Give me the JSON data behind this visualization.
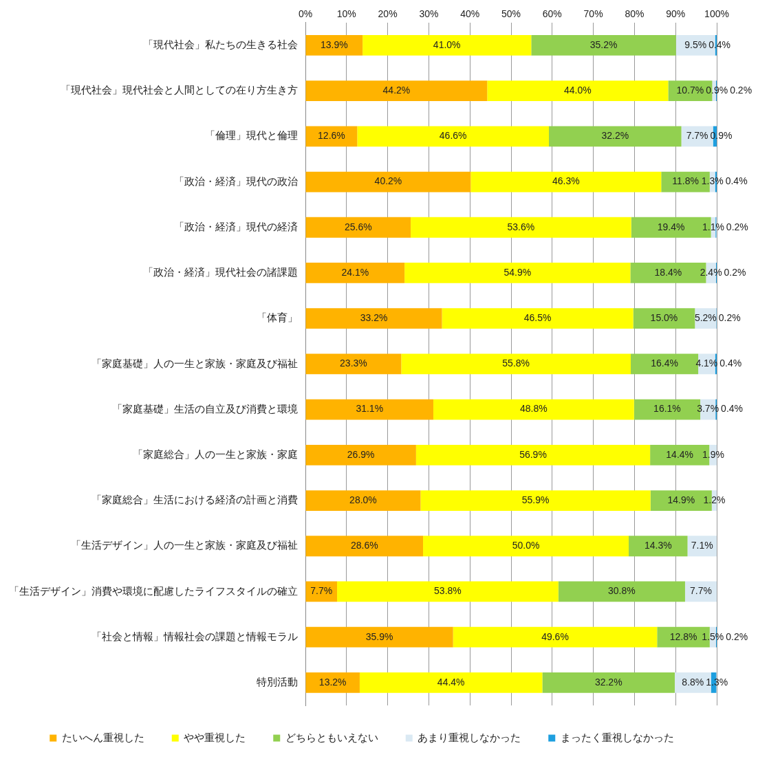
{
  "chart_data": {
    "type": "bar",
    "orientation": "horizontal",
    "stacked": true,
    "categories": [
      "「現代社会」私たちの生きる社会",
      "「現代社会」現代社会と人間としての在り方生き方",
      "「倫理」現代と倫理",
      "「政治・経済」現代の政治",
      "「政治・経済」現代の経済",
      "「政治・経済」現代社会の諸課題",
      "「体育」",
      "「家庭基礎」人の一生と家族・家庭及び福祉",
      "「家庭基礎」生活の自立及び消費と環境",
      "「家庭総合」人の一生と家族・家庭",
      "「家庭総合」生活における経済の計画と消費",
      "「生活デザイン」人の一生と家族・家庭及び福祉",
      "「生活デザイン」消費や環境に配慮したライフスタイルの確立",
      "「社会と情報」情報社会の課題と情報モラル",
      "特別活動"
    ],
    "series": [
      {
        "name": "たいへん重視した",
        "color": "#ffb300",
        "values": [
          13.9,
          44.2,
          12.6,
          40.2,
          25.6,
          24.1,
          33.2,
          23.3,
          31.1,
          26.9,
          28.0,
          28.6,
          7.7,
          35.9,
          13.2
        ],
        "value_labels": [
          "13.9%",
          "44.2%",
          "12.6%",
          "40.2%",
          "25.6%",
          "24.1%",
          "33.2%",
          "23.3%",
          "31.1%",
          "26.9%",
          "28.0%",
          "28.6%",
          "7.7%",
          "35.9%",
          "13.2%"
        ]
      },
      {
        "name": "やや重視した",
        "color": "#ffff00",
        "values": [
          41.0,
          44.0,
          46.6,
          46.3,
          53.6,
          54.9,
          46.5,
          55.8,
          48.8,
          56.9,
          55.9,
          50.0,
          53.8,
          49.6,
          44.4
        ],
        "value_labels": [
          "41.0%",
          "44.0%",
          "46.6%",
          "46.3%",
          "53.6%",
          "54.9%",
          "46.5%",
          "55.8%",
          "48.8%",
          "56.9%",
          "55.9%",
          "50.0%",
          "53.8%",
          "49.6%",
          "44.4%"
        ]
      },
      {
        "name": "どちらともいえない",
        "color": "#92d050",
        "values": [
          35.2,
          10.7,
          32.2,
          11.8,
          19.4,
          18.4,
          15.0,
          16.4,
          16.1,
          14.4,
          14.9,
          14.3,
          30.8,
          12.8,
          32.2
        ],
        "value_labels": [
          "35.2%",
          "10.7%",
          "32.2%",
          "11.8%",
          "19.4%",
          "18.4%",
          "15.0%",
          "16.4%",
          "16.1%",
          "14.4%",
          "14.9%",
          "14.3%",
          "30.8%",
          "12.8%",
          "32.2%"
        ]
      },
      {
        "name": "あまり重視しなかった",
        "color": "#dae9f3",
        "values": [
          9.5,
          0.9,
          7.7,
          1.3,
          1.1,
          2.4,
          5.2,
          4.1,
          3.7,
          1.9,
          1.2,
          7.1,
          7.7,
          1.5,
          8.8
        ],
        "value_labels": [
          "9.5%",
          "0.9%",
          "7.7%",
          "1.3%",
          "1.1%",
          "2.4%",
          "5.2%",
          "4.1%",
          "3.7%",
          "1.9%",
          "1.2%",
          "7.1%",
          "7.7%",
          "1.5%",
          "8.8%"
        ]
      },
      {
        "name": "まったく重視しなかった",
        "color": "#1e9fdf",
        "values": [
          0.4,
          0.2,
          0.9,
          0.4,
          0.2,
          0.2,
          0.2,
          0.4,
          0.4,
          null,
          null,
          null,
          null,
          0.2,
          1.3
        ],
        "value_labels": [
          "0.4%",
          "0.2%",
          "0.9%",
          "0.4%",
          "0.2%",
          "0.2%",
          "0.2%",
          "0.4%",
          "0.4%",
          null,
          null,
          null,
          null,
          "0.2%",
          "1.3%"
        ]
      }
    ],
    "xlim": [
      0,
      100
    ],
    "xticks": [
      {
        "value": 0,
        "label": "0%"
      },
      {
        "value": 10,
        "label": "10%"
      },
      {
        "value": 20,
        "label": "20%"
      },
      {
        "value": 30,
        "label": "30%"
      },
      {
        "value": 40,
        "label": "40%"
      },
      {
        "value": 50,
        "label": "50%"
      },
      {
        "value": 60,
        "label": "60%"
      },
      {
        "value": 70,
        "label": "70%"
      },
      {
        "value": 80,
        "label": "80%"
      },
      {
        "value": 90,
        "label": "90%"
      },
      {
        "value": 100,
        "label": "100%"
      }
    ],
    "grid": "x",
    "legend": "bottom"
  }
}
